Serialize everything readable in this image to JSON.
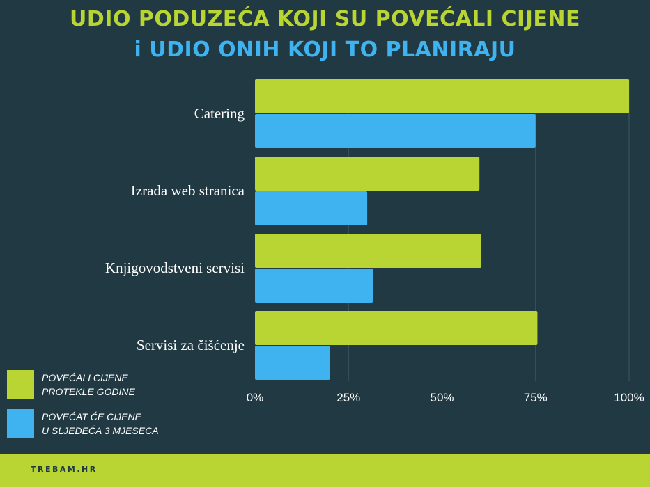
{
  "title_line1": "UDIO PODUZEĆA KOJI SU POVEĆALI CIJENE",
  "title_line2": "i UDIO ONIH KOJI TO PLANIRAJU",
  "colors": {
    "background": "#213943",
    "series1": "#b8d533",
    "series2": "#3fb2f0",
    "grid": "#3d5661",
    "footer": "#b8d533"
  },
  "legend": [
    {
      "line1": "POVEĆALI CIJENE",
      "line2": "PROTEKLE GODINE"
    },
    {
      "line1": "POVEĆAT ĆE CIJENE",
      "line2": "U SLJEDEĆA 3 MJESECA"
    }
  ],
  "footer_text": "TREBAM.HR",
  "chart_data": {
    "type": "bar",
    "orientation": "horizontal",
    "categories": [
      "Catering",
      "Izrada web stranica",
      "Knjigovodstveni servisi",
      "Servisi za čišćenje"
    ],
    "series": [
      {
        "name": "POVEĆALI CIJENE PROTEKLE GODINE",
        "values": [
          100,
          60,
          60.5,
          75.5
        ]
      },
      {
        "name": "POVEĆAT ĆE CIJENE U SLJEDEĆA 3 MJESECA",
        "values": [
          75,
          30,
          31.5,
          20
        ]
      }
    ],
    "xlim": [
      0,
      100
    ],
    "xticks": [
      "0%",
      "25%",
      "50%",
      "75%",
      "100%"
    ],
    "xtick_values": [
      0,
      25,
      50,
      75,
      100
    ],
    "grid": true,
    "legend_position": "bottom-left"
  }
}
